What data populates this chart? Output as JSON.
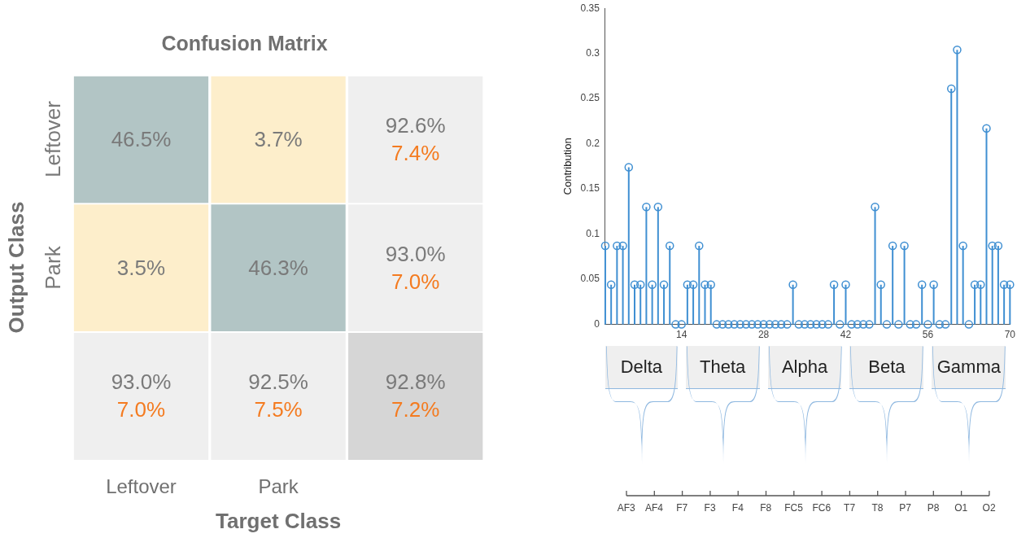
{
  "chart_data": [
    {
      "type": "heatmap",
      "title": "Confusion Matrix",
      "xlabel": "Target Class",
      "ylabel": "Output Class",
      "categories": [
        "Leftover",
        "Park",
        null
      ],
      "y_categories": [
        "Leftover",
        "Park",
        null
      ],
      "cells": [
        [
          46.5,
          3.7,
          92.6
        ],
        [
          3.5,
          46.3,
          93.0
        ],
        [
          93.0,
          92.5,
          92.8
        ]
      ],
      "cell_labels": [
        [
          "46.5%",
          "3.7%",
          "92.6%"
        ],
        [
          "3.5%",
          "46.3%",
          "93.0%"
        ],
        [
          "93.0%",
          "92.5%",
          "92.8%"
        ]
      ],
      "annotations": [
        "7.4%",
        "7.0%",
        "7.0%",
        "7.5%",
        "7.2%"
      ],
      "colors": [
        [
          "#b2c5c5",
          "#fdeecb",
          "#efefef"
        ],
        [
          "#fdeecb",
          "#b2c5c5",
          "#efefef"
        ],
        [
          "#efefef",
          "#efefef",
          "#d6d6d6"
        ]
      ]
    },
    {
      "type": "lollipop",
      "ylabel": "Contribution",
      "color": "#3f8fd2",
      "marker": "circle",
      "grid": false,
      "x": [
        1,
        2,
        3,
        4,
        5,
        6,
        7,
        8,
        9,
        10,
        11,
        12,
        13,
        14,
        15,
        16,
        17,
        18,
        19,
        20,
        21,
        22,
        23,
        24,
        25,
        26,
        27,
        28,
        29,
        30,
        31,
        32,
        33,
        34,
        35,
        36,
        37,
        38,
        39,
        40,
        41,
        42,
        43,
        44,
        45,
        46,
        47,
        48,
        49,
        50,
        51,
        52,
        53,
        54,
        55,
        56,
        57,
        58,
        59,
        60,
        61,
        62,
        63,
        64,
        65,
        66,
        67,
        68,
        69,
        70
      ],
      "values": [
        0.087,
        0.044,
        0.087,
        0.087,
        0.174,
        0.044,
        0.044,
        0.13,
        0.044,
        0.13,
        0.044,
        0.087,
        0,
        0,
        0.044,
        0.044,
        0.087,
        0.044,
        0.044,
        0,
        0,
        0,
        0,
        0,
        0,
        0,
        0,
        0,
        0,
        0,
        0,
        0,
        0.044,
        0,
        0,
        0,
        0,
        0,
        0,
        0.044,
        0,
        0.044,
        0,
        0,
        0,
        0,
        0.13,
        0.044,
        0,
        0.087,
        0,
        0.087,
        0,
        0,
        0.044,
        0,
        0.044,
        0,
        0,
        0.261,
        0.304,
        0.087,
        0,
        0.044,
        0.044,
        0.217,
        0.087,
        0.087,
        0.044,
        0.044
      ],
      "xlim": [
        1,
        70
      ],
      "xticks": [
        14,
        28,
        42,
        56,
        70
      ],
      "ylim": [
        0,
        0.35
      ],
      "yticks": [
        0,
        0.05,
        0.1,
        0.15,
        0.2,
        0.25,
        0.3,
        0.35
      ],
      "annotations": [
        "Delta",
        "Theta",
        "Alpha",
        "Beta",
        "Gamma",
        "AF3",
        "AF4",
        "F7",
        "F3",
        "F4",
        "F8",
        "FC5",
        "FC6",
        "T7",
        "T8",
        "P7",
        "P8",
        "O1",
        "O2"
      ]
    }
  ]
}
